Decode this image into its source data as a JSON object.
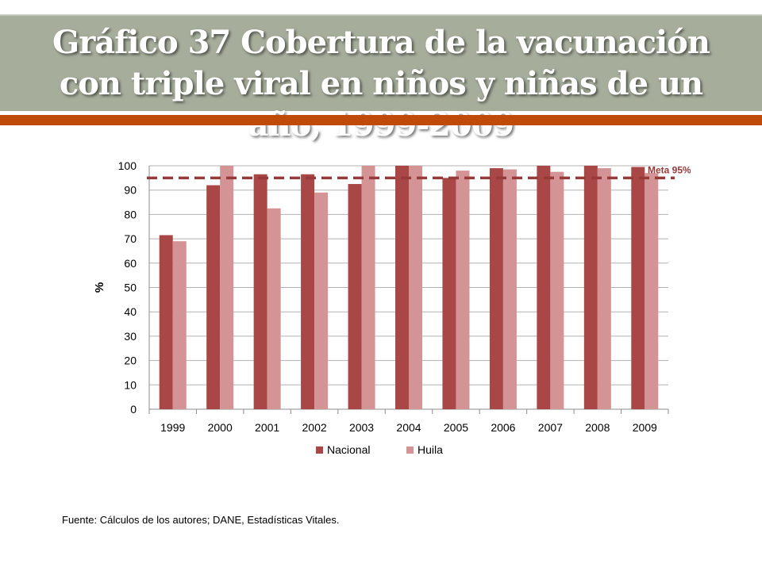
{
  "slide": {
    "title": "Gráfico 37 Cobertura de la vacunación con triple viral en niños y niñas de un año, 1999-2009",
    "source": "Fuente: Cálculos de los autores; DANE, Estadísticas Vitales."
  },
  "colors": {
    "band": "#a6ad9b",
    "accent": "#bf4a0a",
    "nacional": "#a94646",
    "huila": "#d49394",
    "meta_line": "#963a3a"
  },
  "chart_data": {
    "type": "bar",
    "categories": [
      "1999",
      "2000",
      "2001",
      "2002",
      "2003",
      "2004",
      "2005",
      "2006",
      "2007",
      "2008",
      "2009"
    ],
    "series": [
      {
        "name": "Nacional",
        "values": [
          71.5,
          92,
          96.5,
          96.5,
          92.5,
          100,
          95,
          99,
          100,
          100,
          99.5
        ]
      },
      {
        "name": "Huila",
        "values": [
          69,
          100,
          82.5,
          89,
          100,
          100,
          98,
          98.5,
          97.5,
          99,
          97
        ]
      }
    ],
    "ylabel": "%",
    "ylim": [
      0,
      100
    ],
    "yticks": [
      0,
      10,
      20,
      30,
      40,
      50,
      60,
      70,
      80,
      90,
      100
    ],
    "reference_line": {
      "value": 95,
      "label": "Meta 95%"
    },
    "grid": true,
    "legend_position": "bottom"
  }
}
